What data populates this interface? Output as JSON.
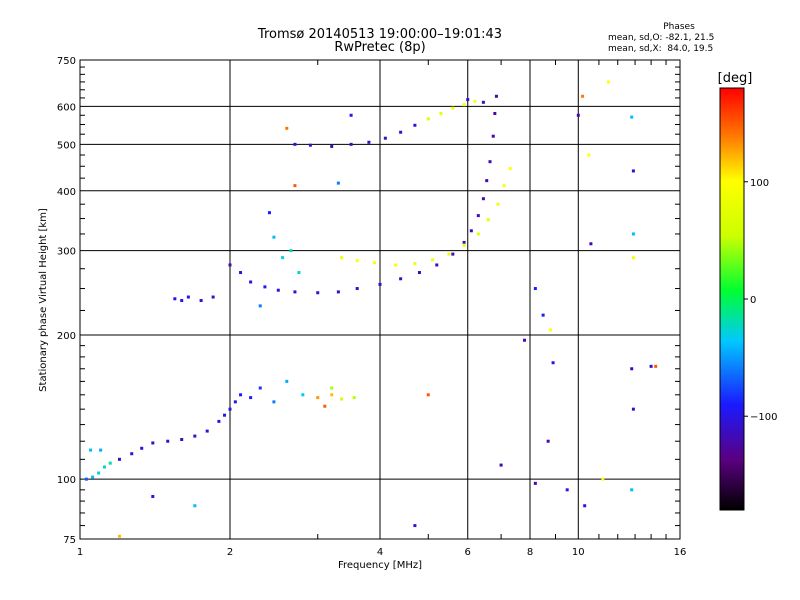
{
  "title": "Tromsø 20140513 19:00:00–19:01:43",
  "subtitle": "RwPretec (8p)",
  "stats": {
    "heading": "Phases",
    "line1": "mean, sd,O: -82.1, 21.5",
    "line2": "mean, sd,X:  84.0, 19.5"
  },
  "colorbar": {
    "label": "[deg]",
    "ticks": [
      100,
      0,
      -100
    ],
    "tick_labels": [
      "100",
      "0",
      "−100"
    ],
    "range": [
      -180,
      180
    ]
  },
  "chart_data": {
    "type": "scatter",
    "title": "Tromsø 20140513 19:00:00–19:01:43",
    "subtitle": "RwPretec (8p)",
    "xlabel": "Frequency [MHz]",
    "ylabel": "Stationary phase Virtual Height [km]",
    "x_scale": "log",
    "y_scale": "log",
    "xlim": [
      1,
      16
    ],
    "ylim": [
      75,
      750
    ],
    "x_ticks": [
      1,
      2,
      4,
      6,
      8,
      10,
      16
    ],
    "x_tick_labels": [
      "1",
      "2",
      "4",
      "6",
      "8",
      "10",
      "16"
    ],
    "y_ticks": [
      75,
      100,
      200,
      300,
      400,
      500,
      600,
      750
    ],
    "y_tick_labels": [
      "75",
      "100",
      "200",
      "300",
      "400",
      "500",
      "600",
      "750"
    ],
    "grid": true,
    "color_encoding": "phase [deg]",
    "series": [
      {
        "points": [
          [
            1.03,
            100,
            -70
          ],
          [
            1.06,
            101,
            -40
          ],
          [
            1.09,
            103,
            -30
          ],
          [
            1.12,
            106,
            -25
          ],
          [
            1.15,
            108,
            -20
          ],
          [
            1.05,
            115,
            -40
          ],
          [
            1.1,
            115,
            -45
          ],
          [
            1.2,
            110,
            -110
          ],
          [
            1.27,
            113,
            -110
          ],
          [
            1.33,
            116,
            -110
          ],
          [
            1.4,
            119,
            -112
          ],
          [
            1.5,
            120,
            -112
          ],
          [
            1.6,
            121,
            -115
          ],
          [
            1.7,
            123,
            -112
          ],
          [
            1.8,
            126,
            -108
          ],
          [
            1.9,
            132,
            -100
          ],
          [
            1.95,
            136,
            -100
          ],
          [
            2.0,
            140,
            -100
          ],
          [
            2.05,
            145,
            -95
          ],
          [
            2.1,
            150,
            -92
          ],
          [
            2.2,
            148,
            -88
          ],
          [
            2.3,
            155,
            -80
          ],
          [
            2.45,
            145,
            -60
          ],
          [
            2.6,
            160,
            -45
          ],
          [
            2.8,
            150,
            -35
          ],
          [
            3.0,
            148,
            130
          ],
          [
            3.1,
            142,
            150
          ],
          [
            3.2,
            150,
            120
          ],
          [
            3.35,
            147,
            60
          ],
          [
            3.55,
            148,
            50
          ],
          [
            3.2,
            155,
            45
          ]
        ]
      },
      {
        "points": [
          [
            2.0,
            280,
            -120
          ],
          [
            2.1,
            270,
            -110
          ],
          [
            2.2,
            258,
            -100
          ],
          [
            2.35,
            252,
            -95
          ],
          [
            2.5,
            248,
            -100
          ],
          [
            2.7,
            246,
            -105
          ],
          [
            3.0,
            245,
            -108
          ],
          [
            3.3,
            246,
            -110
          ],
          [
            3.6,
            250,
            -110
          ],
          [
            4.0,
            255,
            -110
          ],
          [
            4.4,
            262,
            -112
          ],
          [
            4.8,
            270,
            -115
          ],
          [
            5.2,
            280,
            -115
          ],
          [
            5.6,
            295,
            -115
          ],
          [
            5.9,
            312,
            -115
          ],
          [
            6.1,
            330,
            -115
          ],
          [
            6.3,
            355,
            -118
          ],
          [
            6.45,
            385,
            -118
          ],
          [
            6.55,
            420,
            -120
          ],
          [
            6.65,
            460,
            -120
          ],
          [
            6.75,
            520,
            -122
          ],
          [
            6.8,
            580,
            -125
          ],
          [
            6.85,
            630,
            -125
          ],
          [
            2.3,
            230,
            -60
          ],
          [
            2.45,
            320,
            -40
          ],
          [
            2.55,
            290,
            -30
          ],
          [
            2.4,
            360,
            -90
          ],
          [
            2.65,
            300,
            -20
          ],
          [
            2.75,
            270,
            -25
          ]
        ]
      },
      {
        "points": [
          [
            3.35,
            290,
            90
          ],
          [
            3.6,
            286,
            100
          ],
          [
            3.9,
            283,
            95
          ],
          [
            4.3,
            280,
            90
          ],
          [
            4.7,
            282,
            88
          ],
          [
            5.1,
            287,
            85
          ],
          [
            5.5,
            295,
            82
          ],
          [
            5.9,
            308,
            80
          ],
          [
            6.3,
            325,
            75
          ],
          [
            6.6,
            348,
            80
          ],
          [
            6.9,
            375,
            90
          ],
          [
            7.1,
            410,
            95
          ],
          [
            7.3,
            445,
            100
          ]
        ]
      },
      {
        "points": [
          [
            2.7,
            500,
            -105
          ],
          [
            2.9,
            498,
            -110
          ],
          [
            3.2,
            495,
            -112
          ],
          [
            3.5,
            500,
            -115
          ],
          [
            3.8,
            505,
            -115
          ],
          [
            4.1,
            515,
            -112
          ],
          [
            4.4,
            530,
            -110
          ],
          [
            4.7,
            548,
            -100
          ],
          [
            5.0,
            565,
            70
          ],
          [
            5.3,
            580,
            80
          ],
          [
            5.6,
            595,
            85
          ],
          [
            5.9,
            605,
            90
          ],
          [
            6.2,
            615,
            95
          ],
          [
            6.0,
            620,
            -110
          ],
          [
            6.45,
            612,
            -110
          ],
          [
            3.5,
            575,
            -100
          ],
          [
            2.6,
            540,
            140
          ]
        ]
      },
      {
        "points": [
          [
            1.55,
            238,
            -100
          ],
          [
            1.6,
            236,
            -100
          ],
          [
            1.65,
            240,
            -100
          ],
          [
            1.75,
            236,
            -105
          ],
          [
            1.85,
            240,
            -110
          ],
          [
            7.8,
            195,
            -120
          ],
          [
            8.2,
            250,
            -90
          ],
          [
            8.5,
            220,
            -90
          ],
          [
            8.8,
            205,
            100
          ],
          [
            8.7,
            120,
            -120
          ],
          [
            8.9,
            175,
            -100
          ],
          [
            9.5,
            95,
            -100
          ],
          [
            10.0,
            575,
            -120
          ],
          [
            10.2,
            630,
            140
          ],
          [
            10.5,
            475,
            100
          ],
          [
            10.6,
            310,
            -120
          ],
          [
            11.2,
            100,
            100
          ],
          [
            11.5,
            675,
            100
          ],
          [
            12.8,
            570,
            -40
          ],
          [
            12.9,
            440,
            -110
          ],
          [
            12.9,
            325,
            -40
          ],
          [
            12.9,
            290,
            90
          ],
          [
            12.8,
            170,
            -120
          ],
          [
            12.9,
            140,
            -110
          ],
          [
            12.8,
            95,
            -40
          ],
          [
            14.0,
            172,
            -110
          ],
          [
            14.3,
            172,
            150
          ],
          [
            8.2,
            98,
            -120
          ],
          [
            10.3,
            88,
            -100
          ],
          [
            7.0,
            107,
            -120
          ],
          [
            5.0,
            150,
            150
          ],
          [
            4.7,
            80,
            -100
          ],
          [
            1.4,
            92,
            -100
          ],
          [
            1.7,
            88,
            -40
          ],
          [
            1.2,
            76,
            120
          ],
          [
            2.7,
            410,
            150
          ],
          [
            3.3,
            415,
            -60
          ]
        ]
      }
    ]
  }
}
